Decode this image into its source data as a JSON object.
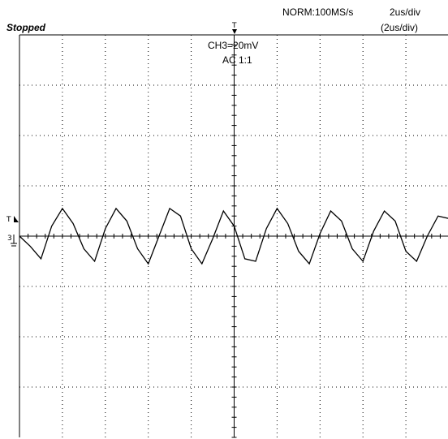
{
  "status": "Stopped",
  "acquisition": "NORM:100MS/s",
  "timebase": "2us/div",
  "timebase_zoom": "(2us/div)",
  "channel": "CH3=20mV",
  "coupling": "AC 1:1",
  "markers": {
    "trigger_top": "T",
    "trigger_level": "T",
    "channel_ground": "3"
  },
  "colors": {
    "trace": "#000000",
    "grid": "#000000",
    "background": "#ffffff"
  },
  "chart_data": {
    "type": "line",
    "x_unit": "us",
    "y_unit": "mV",
    "xlim": [
      -10,
      10
    ],
    "ylim": [
      -80,
      80
    ],
    "grid": true,
    "series": [
      {
        "x": [
          -10,
          -9.5,
          -9,
          -8.5,
          -8,
          -7.5,
          -7,
          -6.5,
          -6,
          -5.5,
          -5,
          -4.5,
          -4,
          -3.5,
          -3,
          -2.5,
          -2,
          -1.5,
          -1,
          -0.5,
          0,
          0.5,
          1,
          1.5,
          2,
          2.5,
          3,
          3.5,
          4,
          4.5,
          5,
          5.5,
          6,
          6.5,
          7,
          7.5,
          8,
          8.5,
          9,
          9.5,
          10
        ],
        "values": [
          0,
          -4,
          -9,
          4,
          11,
          5,
          -5,
          -10,
          3,
          11,
          6,
          -5,
          -11,
          0,
          11,
          8,
          -5,
          -11,
          -1,
          10,
          4,
          -9,
          -10,
          3,
          11,
          5,
          -6,
          -11,
          1,
          10,
          6,
          -5,
          -10,
          2,
          10,
          6,
          -6,
          -10,
          0,
          8,
          7
        ]
      }
    ]
  }
}
